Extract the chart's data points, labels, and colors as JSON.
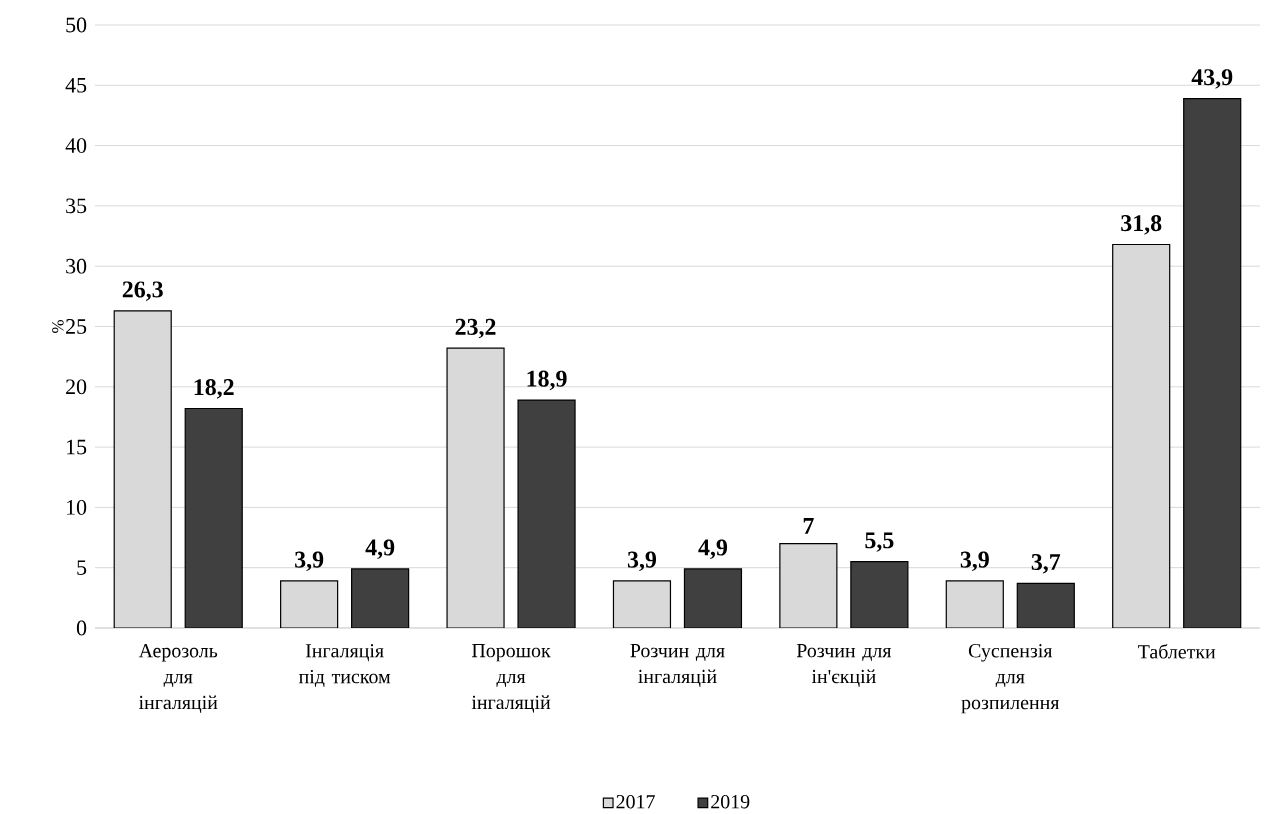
{
  "chart_data": {
    "type": "bar",
    "ylabel": "%",
    "categories": [
      "Аерозоль для інгаляцій",
      "Інгаляція під тиском",
      "Порошок для інгаляцій",
      "Розчин для інгаляцій",
      "Розчин для ін'єкцій",
      "Суспензія для розпилення",
      "Таблетки"
    ],
    "series": [
      {
        "name": "2017",
        "color": "#d9d9d9",
        "values": [
          26.3,
          3.9,
          23.2,
          3.9,
          7,
          3.9,
          31.8
        ],
        "value_labels": [
          "26,3",
          "3,9",
          "23,2",
          "3,9",
          "7",
          "3,9",
          "31,8"
        ]
      },
      {
        "name": "2019",
        "color": "#404040",
        "values": [
          18.2,
          4.9,
          18.9,
          4.9,
          5.5,
          3.7,
          43.9
        ],
        "value_labels": [
          "18,2",
          "4,9",
          "18,9",
          "4,9",
          "5,5",
          "3,7",
          "43,9"
        ]
      }
    ],
    "ylim": [
      0,
      50
    ],
    "yticks": [
      0,
      5,
      10,
      15,
      20,
      25,
      30,
      35,
      40,
      45,
      50
    ],
    "grid": "y",
    "legend": "bottom"
  }
}
